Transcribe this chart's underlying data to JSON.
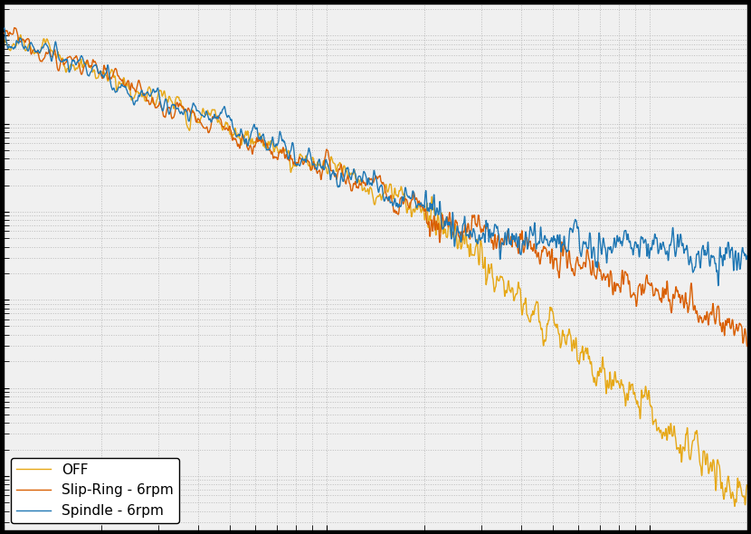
{
  "title": "",
  "xlabel": "",
  "ylabel": "",
  "line1_label": "Spindle - 6rpm",
  "line2_label": "Slip-Ring - 6rpm",
  "line3_label": "OFF",
  "line1_color": "#1f77b4",
  "line2_color": "#d95f02",
  "line3_color": "#e6a817",
  "background_color": "#f0f0f0",
  "grid_color": "#b0b0b0",
  "linewidth": 1.0,
  "legend_loc": "lower left",
  "legend_fontsize": 11,
  "seed": 42,
  "n_points": 3000
}
